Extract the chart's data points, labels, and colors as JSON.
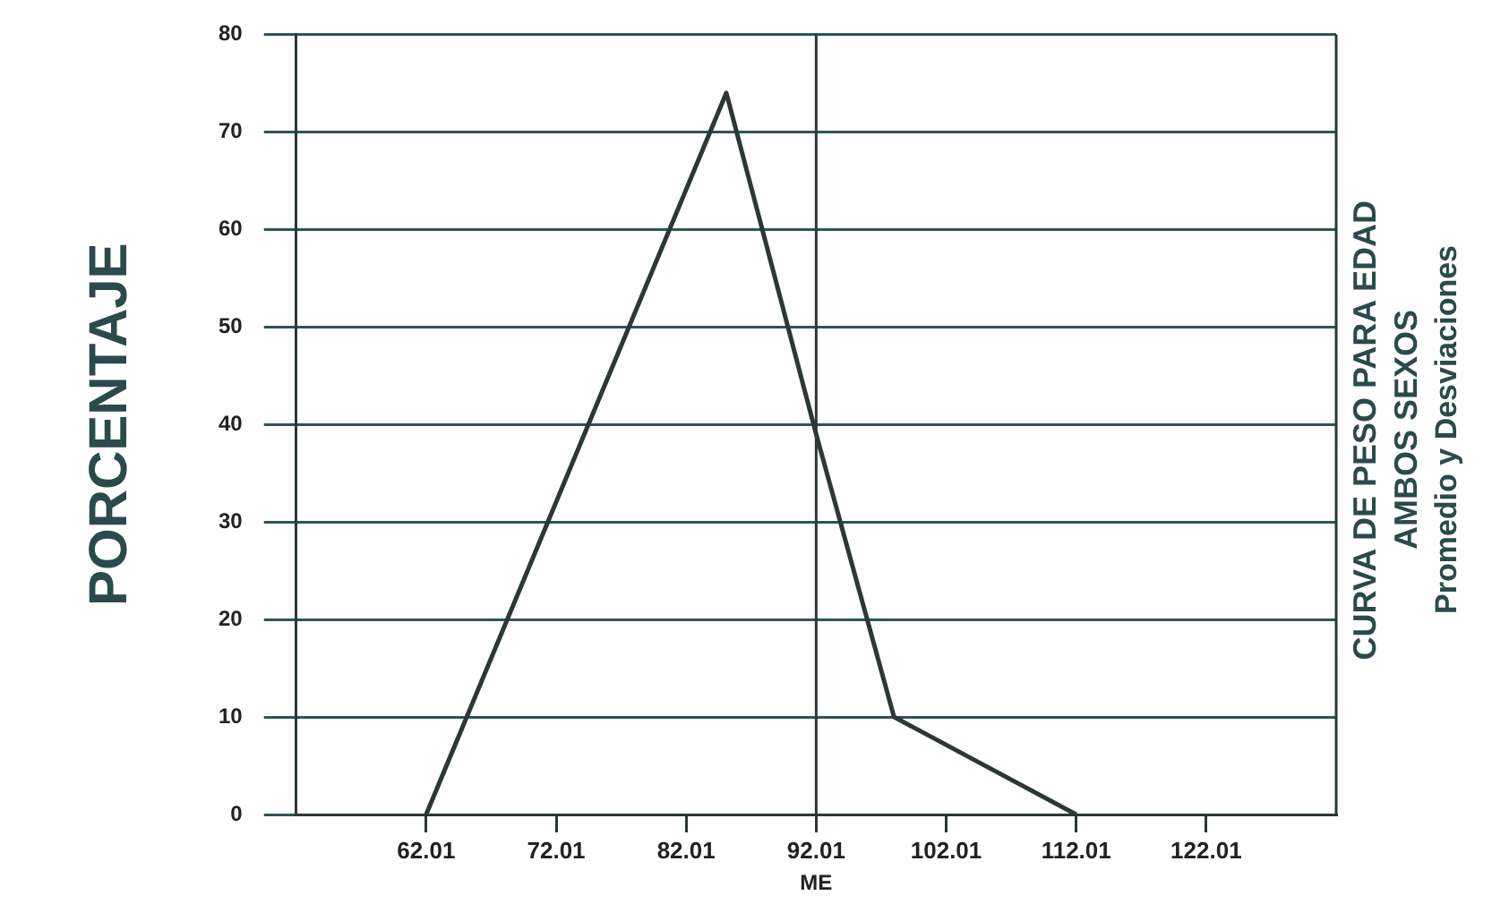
{
  "chart_data": {
    "type": "line",
    "title": "CURVA DE PESO PARA EDAD",
    "subtitle": "AMBOS SEXOS",
    "annotations": [
      "Promedio y Desviaciones"
    ],
    "xlabel": "ME",
    "ylabel": "PORCENTAJE",
    "x": [
      62.01,
      85.1,
      92.01,
      98,
      112.01
    ],
    "series": [
      {
        "color": "#2b3833",
        "values": [
          0,
          74,
          39,
          10,
          0
        ]
      }
    ],
    "xlim": [
      52.01,
      132.01
    ],
    "xticks": [
      62.01,
      72.01,
      82.01,
      92.01,
      102.01,
      112.01,
      122.01
    ],
    "ylim": [
      0,
      80
    ],
    "yticks": [
      0,
      10,
      20,
      30,
      40,
      50,
      60,
      70,
      80
    ],
    "grid": "y",
    "legend": false,
    "marker": "none",
    "line_style": "solid",
    "ref_lines": [
      {
        "axis": "x",
        "value": 92.01,
        "color": "#2b3833"
      }
    ]
  }
}
